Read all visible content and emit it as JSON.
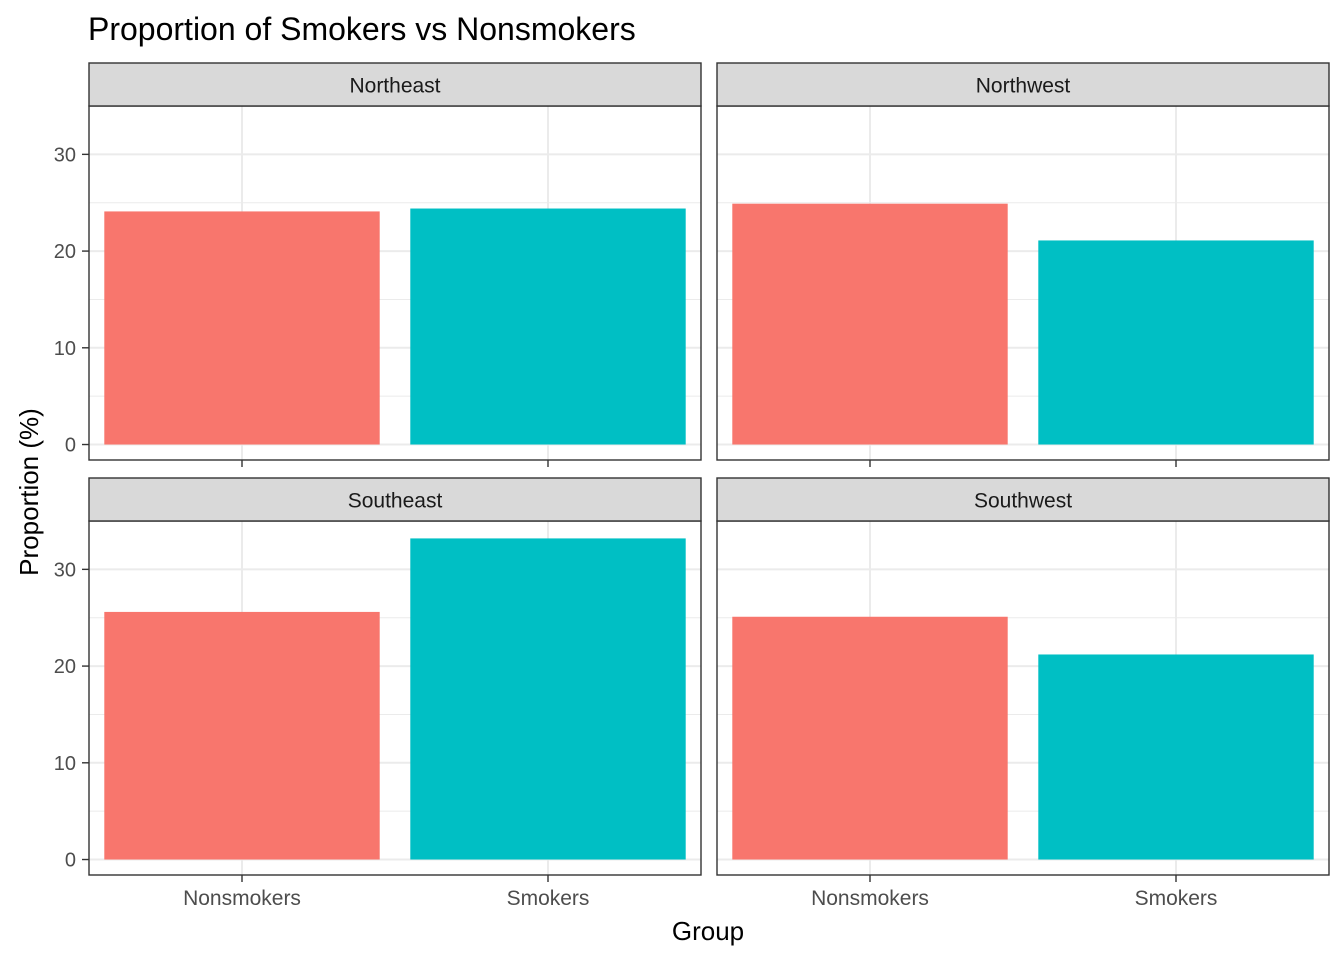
{
  "chart_data": {
    "type": "bar",
    "title": "Proportion of Smokers vs Nonsmokers",
    "xlabel": "Group",
    "ylabel": "Proportion (%)",
    "ylim": [
      -1.6,
      35
    ],
    "yticks": [
      0,
      10,
      20,
      30
    ],
    "grid": true,
    "categories": [
      "Nonsmokers",
      "Smokers"
    ],
    "colors": {
      "Nonsmokers": "#F8766D",
      "Smokers": "#00BFC4"
    },
    "panels": [
      {
        "name": "Northeast",
        "values": [
          24.1,
          24.4
        ]
      },
      {
        "name": "Northwest",
        "values": [
          24.9,
          21.1
        ]
      },
      {
        "name": "Southeast",
        "values": [
          25.6,
          33.2
        ]
      },
      {
        "name": "Southwest",
        "values": [
          25.1,
          21.2
        ]
      }
    ]
  }
}
